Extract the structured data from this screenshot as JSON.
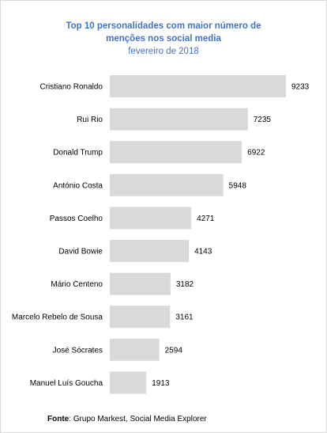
{
  "chart_data": {
    "type": "bar",
    "orientation": "horizontal",
    "title_lines": [
      "Top 10 personalidades com maior número de",
      "menções nos social media"
    ],
    "subtitle": "fevereiro de 2018",
    "categories": [
      "Cristiano Ronaldo",
      "Rui Rio",
      "Donald Trump",
      "António Costa",
      "Passos Coelho",
      "David Bowie",
      "Mário Centeno",
      "Marcelo Rebelo de Sousa",
      "José Sócrates",
      "Manuel Luís Goucha"
    ],
    "values": [
      9233,
      7235,
      6922,
      5948,
      4271,
      4143,
      3182,
      3161,
      2594,
      1913
    ],
    "xlim": [
      0,
      9233
    ],
    "grid": false,
    "legend": "none",
    "bar_color": "#d9d9d9"
  },
  "source": {
    "label": "Fonte",
    "text": ": Grupo Markest, Social Media Explorer"
  }
}
